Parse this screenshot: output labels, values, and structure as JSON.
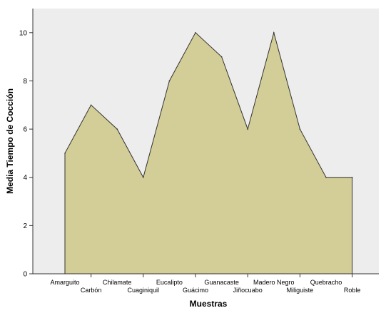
{
  "chart_data": {
    "type": "area",
    "title": "",
    "xlabel": "Muestras",
    "ylabel": "Media Tiempo de Cocción",
    "categories": [
      "Amarguito",
      "Carbón",
      "Chilamate",
      "Cuaginiquil",
      "Eucalipto",
      "Guácimo",
      "Guanacaste",
      "Jiñocuabo",
      "Madero Negro",
      "Miliguiste",
      "Quebracho",
      "Roble"
    ],
    "series": [
      {
        "values": [
          5,
          7,
          6,
          4,
          8,
          10,
          9,
          6,
          10,
          6,
          4,
          4
        ]
      }
    ],
    "ylim": [
      0,
      11
    ],
    "yticks": [
      0,
      2,
      4,
      6,
      8,
      10
    ],
    "grid": false,
    "colors": {
      "plot_background": "#ededed",
      "area_fill": "#d3ce97",
      "line": "#333333",
      "axis": "#333333"
    }
  }
}
